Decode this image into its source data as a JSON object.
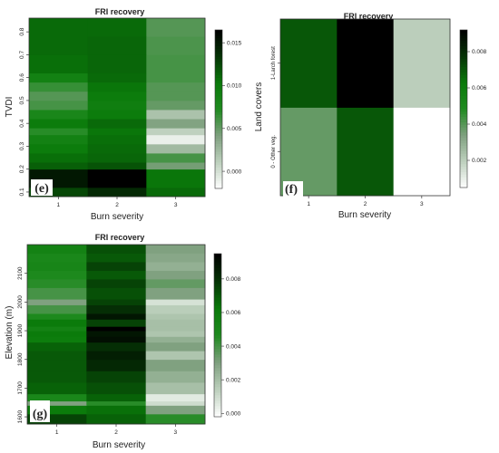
{
  "chart_data": [
    {
      "type": "heatmap",
      "panel_letter": "(e)",
      "title": "FRI recovery",
      "xlabel": "Burn severity",
      "ylabel": "TVDI",
      "x_categories": [
        "1",
        "2",
        "3"
      ],
      "y_ticks": [
        "0.1",
        "0.2",
        "0.3",
        "0.4",
        "0.5",
        "0.6",
        "0.7",
        "0.8"
      ],
      "ylim": [
        0.08,
        0.86
      ],
      "colorbar_ticks": [
        "0.000",
        "0.005",
        "0.010",
        "0.015"
      ],
      "colorbar_range": [
        -0.002,
        0.0165
      ],
      "color_scale": [
        "#ffffff",
        "#bdd0bd",
        "#7fa07f",
        "#1f8a1f",
        "#0a7a0a",
        "#053205",
        "#000000"
      ],
      "rows": [
        {
          "y": [
            0.08,
            0.12
          ],
          "values": [
            0.0125,
            0.014,
            0.011
          ]
        },
        {
          "y": [
            0.12,
            0.2
          ],
          "values": [
            0.015,
            0.0165,
            0.0105
          ]
        },
        {
          "y": [
            0.2,
            0.23
          ],
          "values": [
            0.0115,
            0.012,
            0.0045
          ]
        },
        {
          "y": [
            0.23,
            0.27
          ],
          "values": [
            0.0108,
            0.0112,
            0.006
          ]
        },
        {
          "y": [
            0.27,
            0.31
          ],
          "values": [
            0.01,
            0.011,
            0.0025
          ]
        },
        {
          "y": [
            0.31,
            0.35
          ],
          "values": [
            0.009,
            0.0108,
            -0.001
          ]
        },
        {
          "y": [
            0.35,
            0.38
          ],
          "values": [
            0.007,
            0.0105,
            0.001
          ]
        },
        {
          "y": [
            0.38,
            0.42
          ],
          "values": [
            0.01,
            0.011,
            0.004
          ]
        },
        {
          "y": [
            0.42,
            0.46
          ],
          "values": [
            0.008,
            0.01,
            0.002
          ]
        },
        {
          "y": [
            0.46,
            0.5
          ],
          "values": [
            0.006,
            0.0095,
            0.005
          ]
        },
        {
          "y": [
            0.5,
            0.54
          ],
          "values": [
            0.0055,
            0.01,
            0.0055
          ]
        },
        {
          "y": [
            0.54,
            0.58
          ],
          "values": [
            0.0065,
            0.0105,
            0.0055
          ]
        },
        {
          "y": [
            0.58,
            0.62
          ],
          "values": [
            0.009,
            0.011,
            0.006
          ]
        },
        {
          "y": [
            0.62,
            0.7
          ],
          "values": [
            0.0108,
            0.0112,
            0.006
          ]
        },
        {
          "y": [
            0.7,
            0.78
          ],
          "values": [
            0.011,
            0.0112,
            0.0058
          ]
        },
        {
          "y": [
            0.78,
            0.86
          ],
          "values": [
            0.011,
            0.011,
            0.0055
          ]
        }
      ]
    },
    {
      "type": "heatmap",
      "panel_letter": "(f)",
      "title": "FRI recovery",
      "xlabel": "Burn severity",
      "ylabel": "Land covers",
      "x_categories": [
        "1",
        "2",
        "3"
      ],
      "y_categories": [
        "0 - Other veg.",
        "1-Larch forest"
      ],
      "colorbar_ticks": [
        "0.002",
        "0.004",
        "0.006",
        "0.008"
      ],
      "colorbar_range": [
        0.0005,
        0.0092
      ],
      "color_scale": [
        "#ffffff",
        "#bdd0bd",
        "#7fa07f",
        "#1f8a1f",
        "#0a7a0a",
        "#053205",
        "#000000"
      ],
      "matrix": [
        [
          0.0038,
          0.007,
          0.0005
        ],
        [
          0.007,
          0.0092,
          0.002
        ]
      ]
    },
    {
      "type": "heatmap",
      "panel_letter": "(g)",
      "title": "FRI recovery",
      "xlabel": "Burn severity",
      "ylabel": "Elevation (m)",
      "x_categories": [
        "1",
        "2",
        "3"
      ],
      "y_ticks": [
        "1600",
        "1700",
        "1800",
        "1900",
        "2000",
        "2100"
      ],
      "ylim": [
        1575,
        2200
      ],
      "colorbar_ticks": [
        "0.000",
        "0.002",
        "0.004",
        "0.006",
        "0.008"
      ],
      "colorbar_range": [
        -0.0002,
        0.0095
      ],
      "color_scale": [
        "#ffffff",
        "#bdd0bd",
        "#7fa07f",
        "#1f8a1f",
        "#0a7a0a",
        "#053205",
        "#000000"
      ],
      "rows": [
        {
          "y": [
            1575,
            1610
          ],
          "values": [
            0.0075,
            0.0068,
            0.0045
          ]
        },
        {
          "y": [
            1610,
            1640
          ],
          "values": [
            0.0062,
            0.0065,
            0.003
          ]
        },
        {
          "y": [
            1640,
            1655
          ],
          "values": [
            0.003,
            0.0045,
            0.001
          ]
        },
        {
          "y": [
            1655,
            1680
          ],
          "values": [
            0.005,
            0.0068,
            0.0005
          ]
        },
        {
          "y": [
            1680,
            1720
          ],
          "values": [
            0.0068,
            0.0072,
            0.002
          ]
        },
        {
          "y": [
            1720,
            1760
          ],
          "values": [
            0.007,
            0.0075,
            0.0025
          ]
        },
        {
          "y": [
            1760,
            1800
          ],
          "values": [
            0.007,
            0.0082,
            0.003
          ]
        },
        {
          "y": [
            1800,
            1830
          ],
          "values": [
            0.007,
            0.0085,
            0.0018
          ]
        },
        {
          "y": [
            1830,
            1860
          ],
          "values": [
            0.0068,
            0.008,
            0.003
          ]
        },
        {
          "y": [
            1860,
            1880
          ],
          "values": [
            0.006,
            0.009,
            0.0025
          ]
        },
        {
          "y": [
            1880,
            1900
          ],
          "values": [
            0.0062,
            0.0088,
            0.0018
          ]
        },
        {
          "y": [
            1900,
            1915
          ],
          "values": [
            0.0055,
            0.0095,
            0.002
          ]
        },
        {
          "y": [
            1915,
            1940
          ],
          "values": [
            0.0062,
            0.0075,
            0.002
          ]
        },
        {
          "y": [
            1940,
            1960
          ],
          "values": [
            0.0048,
            0.0088,
            0.0018
          ]
        },
        {
          "y": [
            1960,
            1990
          ],
          "values": [
            0.004,
            0.008,
            0.0015
          ]
        },
        {
          "y": [
            1990,
            2010
          ],
          "values": [
            0.003,
            0.0075,
            0.0008
          ]
        },
        {
          "y": [
            2010,
            2050
          ],
          "values": [
            0.004,
            0.0072,
            0.003
          ]
        },
        {
          "y": [
            2050,
            2080
          ],
          "values": [
            0.0045,
            0.0075,
            0.0035
          ]
        },
        {
          "y": [
            2080,
            2110
          ],
          "values": [
            0.0048,
            0.007,
            0.003
          ]
        },
        {
          "y": [
            2110,
            2140
          ],
          "values": [
            0.0052,
            0.0075,
            0.0025
          ]
        },
        {
          "y": [
            2140,
            2170
          ],
          "values": [
            0.005,
            0.007,
            0.0028
          ]
        },
        {
          "y": [
            2170,
            2200
          ],
          "values": [
            0.0055,
            0.0072,
            0.003
          ]
        }
      ]
    }
  ]
}
